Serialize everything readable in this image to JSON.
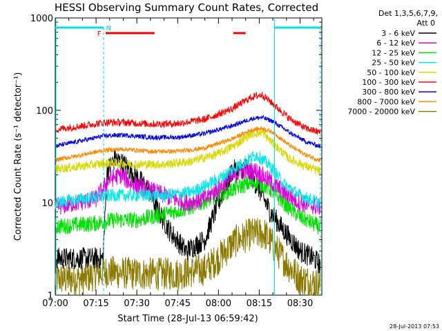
{
  "chart_data": {
    "type": "line",
    "title": "HESSI Observing Summary Count Rates, Corrected",
    "xlabel": "Start Time (28-Jul-13 06:59:42)",
    "ylabel": "Corrected Count Rate (s⁻¹ detector⁻¹)",
    "ylog": true,
    "ylim": [
      1,
      1000
    ],
    "xlim_minutes": [
      0,
      98
    ],
    "x_ticks": [
      {
        "minutes": 0,
        "label": "07:00"
      },
      {
        "minutes": 15,
        "label": "07:15"
      },
      {
        "minutes": 30,
        "label": "07:30"
      },
      {
        "minutes": 45,
        "label": "07:45"
      },
      {
        "minutes": 60,
        "label": "08:00"
      },
      {
        "minutes": 75,
        "label": "08:15"
      },
      {
        "minutes": 90,
        "label": "08:30"
      }
    ],
    "y_ticks": [
      {
        "value": 1,
        "label": "1"
      },
      {
        "value": 10,
        "label": "10"
      },
      {
        "value": 100,
        "label": "100"
      },
      {
        "value": 1000,
        "label": "1000"
      }
    ],
    "legend_header": [
      "Det 1,3,5,6,7,9,",
      "Att 0"
    ],
    "series": [
      {
        "name": "3 - 6 keV",
        "color": "#000000",
        "points": [
          [
            0,
            2.5
          ],
          [
            17.5,
            2.5
          ],
          [
            18.2,
            6
          ],
          [
            19,
            22
          ],
          [
            22,
            30
          ],
          [
            26,
            25
          ],
          [
            30,
            19
          ],
          [
            34,
            14
          ],
          [
            38,
            8
          ],
          [
            42,
            5
          ],
          [
            48,
            3
          ],
          [
            55,
            4
          ],
          [
            60,
            10
          ],
          [
            65,
            22
          ],
          [
            70,
            24
          ],
          [
            75,
            14
          ],
          [
            79,
            8
          ],
          [
            84,
            5
          ],
          [
            90,
            3
          ],
          [
            95,
            2.5
          ],
          [
            97,
            2.2
          ]
        ]
      },
      {
        "name": "6 - 12 keV",
        "color": "#e000e0",
        "points": [
          [
            0,
            9
          ],
          [
            15,
            11
          ],
          [
            20,
            18
          ],
          [
            24,
            20
          ],
          [
            28,
            16
          ],
          [
            34,
            14
          ],
          [
            40,
            12
          ],
          [
            48,
            10
          ],
          [
            55,
            11
          ],
          [
            62,
            16
          ],
          [
            68,
            22
          ],
          [
            74,
            22
          ],
          [
            78,
            18
          ],
          [
            84,
            13
          ],
          [
            90,
            10
          ],
          [
            97,
            9
          ]
        ]
      },
      {
        "name": "12 - 25 keV",
        "color": "#00e000",
        "points": [
          [
            0,
            5.5
          ],
          [
            15,
            6
          ],
          [
            22,
            6.5
          ],
          [
            30,
            6.5
          ],
          [
            40,
            7.5
          ],
          [
            50,
            9
          ],
          [
            60,
            12
          ],
          [
            68,
            15
          ],
          [
            74,
            17
          ],
          [
            79,
            14
          ],
          [
            84,
            10
          ],
          [
            90,
            7
          ],
          [
            97,
            5.5
          ]
        ]
      },
      {
        "name": "25 - 50 keV",
        "color": "#00e8e8",
        "points": [
          [
            0,
            10
          ],
          [
            10,
            11
          ],
          [
            20,
            12
          ],
          [
            30,
            12
          ],
          [
            40,
            12
          ],
          [
            50,
            13
          ],
          [
            60,
            18
          ],
          [
            68,
            26
          ],
          [
            74,
            33
          ],
          [
            79,
            25
          ],
          [
            84,
            16
          ],
          [
            90,
            12
          ],
          [
            97,
            10
          ]
        ]
      },
      {
        "name": "50 - 100 keV",
        "color": "#d8d800",
        "points": [
          [
            0,
            23
          ],
          [
            10,
            25
          ],
          [
            20,
            27
          ],
          [
            30,
            26
          ],
          [
            40,
            26
          ],
          [
            50,
            28
          ],
          [
            60,
            34
          ],
          [
            66,
            42
          ],
          [
            72,
            56
          ],
          [
            76,
            58
          ],
          [
            80,
            44
          ],
          [
            86,
            30
          ],
          [
            92,
            25
          ],
          [
            97,
            22
          ]
        ]
      },
      {
        "name": "100 - 300 keV",
        "color": "#ff0000",
        "points": [
          [
            0,
            62
          ],
          [
            10,
            68
          ],
          [
            18,
            74
          ],
          [
            25,
            74
          ],
          [
            35,
            71
          ],
          [
            45,
            72
          ],
          [
            55,
            80
          ],
          [
            65,
            104
          ],
          [
            72,
            138
          ],
          [
            76,
            148
          ],
          [
            80,
            118
          ],
          [
            86,
            82
          ],
          [
            92,
            64
          ],
          [
            97,
            58
          ]
        ]
      },
      {
        "name": "300 - 800 keV",
        "color": "#0000e0",
        "points": [
          [
            0,
            41
          ],
          [
            10,
            47
          ],
          [
            18,
            53
          ],
          [
            25,
            54
          ],
          [
            35,
            51
          ],
          [
            45,
            51
          ],
          [
            55,
            56
          ],
          [
            65,
            68
          ],
          [
            72,
            81
          ],
          [
            76,
            84
          ],
          [
            80,
            76
          ],
          [
            86,
            58
          ],
          [
            92,
            46
          ],
          [
            97,
            41
          ]
        ]
      },
      {
        "name": "800 - 7000 keV",
        "color": "#ff8800",
        "points": [
          [
            0,
            29
          ],
          [
            10,
            33
          ],
          [
            18,
            37
          ],
          [
            25,
            38
          ],
          [
            35,
            36
          ],
          [
            45,
            36
          ],
          [
            55,
            39
          ],
          [
            65,
            49
          ],
          [
            72,
            61
          ],
          [
            76,
            64
          ],
          [
            80,
            58
          ],
          [
            86,
            42
          ],
          [
            92,
            33
          ],
          [
            97,
            29
          ]
        ]
      },
      {
        "name": "7000 - 20000 keV",
        "color": "#8a7a00",
        "points": [
          [
            0,
            1.5
          ],
          [
            10,
            1.5
          ],
          [
            18,
            1.8
          ],
          [
            30,
            1.7
          ],
          [
            45,
            1.7
          ],
          [
            55,
            1.9
          ],
          [
            60,
            2.5
          ],
          [
            66,
            3.8
          ],
          [
            72,
            4.6
          ],
          [
            77,
            4.6
          ],
          [
            80,
            3.5
          ],
          [
            85,
            2.2
          ],
          [
            90,
            1.5
          ],
          [
            97,
            1.3
          ]
        ]
      }
    ],
    "attenuator_segments_minutes": [
      [
        0,
        17.8
      ],
      [
        80.6,
        97.5
      ]
    ],
    "attenuator_dashed_minutes": [
      17.8,
      80.6,
      97.5
    ],
    "flare_segments_minutes": [
      [
        18.5,
        36.5
      ],
      [
        65.5,
        70
      ]
    ],
    "markers": {
      "flare_letter": "F",
      "night_letter": "N"
    },
    "timestamp": "28-Jul-2013 07:53"
  }
}
